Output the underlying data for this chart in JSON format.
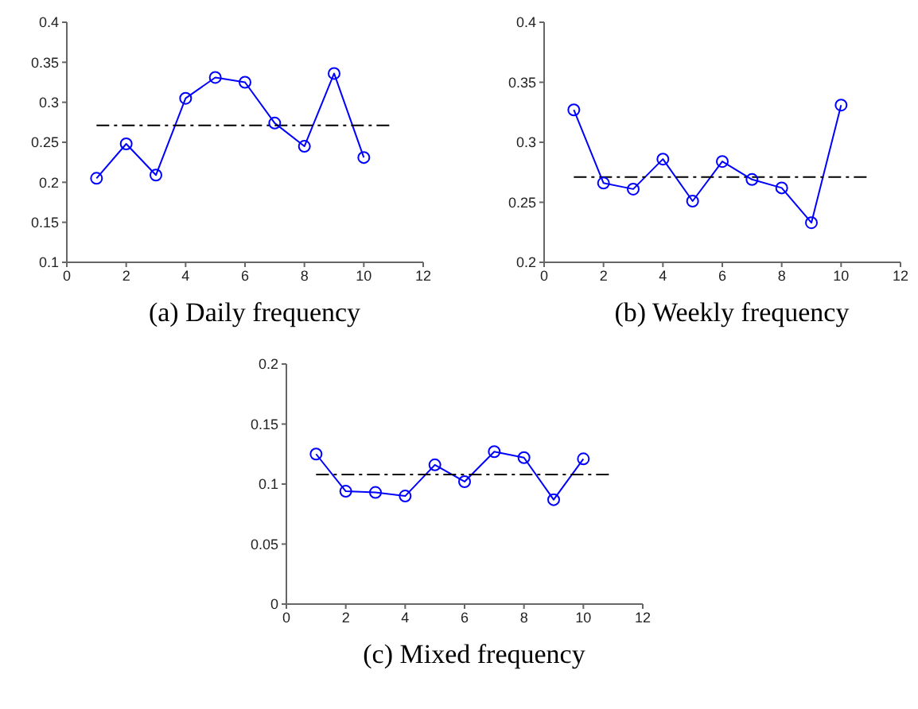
{
  "chart_data": [
    {
      "type": "line",
      "title": "(a) Daily frequency",
      "xlim": [
        0,
        12
      ],
      "xticks": [
        0,
        2,
        4,
        6,
        8,
        10,
        12
      ],
      "ylim": [
        0.1,
        0.4
      ],
      "yticks": [
        0.1,
        0.15,
        0.2,
        0.25,
        0.3,
        0.35,
        0.4
      ],
      "grid": false,
      "legend": false,
      "series": [
        {
          "color": "#0000ff",
          "marker": "circle",
          "line_style": "solid",
          "x": [
            1,
            2,
            3,
            4,
            5,
            6,
            7,
            8,
            9,
            10
          ],
          "values": [
            0.205,
            0.248,
            0.209,
            0.305,
            0.331,
            0.325,
            0.274,
            0.245,
            0.336,
            0.231
          ]
        },
        {
          "color": "#000000",
          "marker": "none",
          "line_style": "dashed",
          "x": [
            1,
            11
          ],
          "values": [
            0.271,
            0.271
          ]
        }
      ]
    },
    {
      "type": "line",
      "title": "(b) Weekly frequency",
      "xlim": [
        0,
        12
      ],
      "xticks": [
        0,
        2,
        4,
        6,
        8,
        10,
        12
      ],
      "ylim": [
        0.2,
        0.4
      ],
      "yticks": [
        0.2,
        0.25,
        0.3,
        0.35,
        0.4
      ],
      "grid": false,
      "legend": false,
      "series": [
        {
          "color": "#0000ff",
          "marker": "circle",
          "line_style": "solid",
          "x": [
            1,
            2,
            3,
            4,
            5,
            6,
            7,
            8,
            9,
            10
          ],
          "values": [
            0.327,
            0.266,
            0.261,
            0.286,
            0.251,
            0.284,
            0.269,
            0.262,
            0.233,
            0.331
          ]
        },
        {
          "color": "#000000",
          "marker": "none",
          "line_style": "dashed",
          "x": [
            1,
            11
          ],
          "values": [
            0.271,
            0.271
          ]
        }
      ]
    },
    {
      "type": "line",
      "title": "(c) Mixed frequency",
      "xlim": [
        0,
        12
      ],
      "xticks": [
        0,
        2,
        4,
        6,
        8,
        10,
        12
      ],
      "ylim": [
        0,
        0.2
      ],
      "yticks": [
        0,
        0.05,
        0.1,
        0.15,
        0.2
      ],
      "grid": false,
      "legend": false,
      "series": [
        {
          "color": "#0000ff",
          "marker": "circle",
          "line_style": "solid",
          "x": [
            1,
            2,
            3,
            4,
            5,
            6,
            7,
            8,
            9,
            10
          ],
          "values": [
            0.125,
            0.094,
            0.093,
            0.09,
            0.116,
            0.102,
            0.127,
            0.122,
            0.087,
            0.121
          ]
        },
        {
          "color": "#000000",
          "marker": "none",
          "line_style": "dashed",
          "x": [
            1,
            11
          ],
          "values": [
            0.108,
            0.108
          ]
        }
      ]
    }
  ]
}
